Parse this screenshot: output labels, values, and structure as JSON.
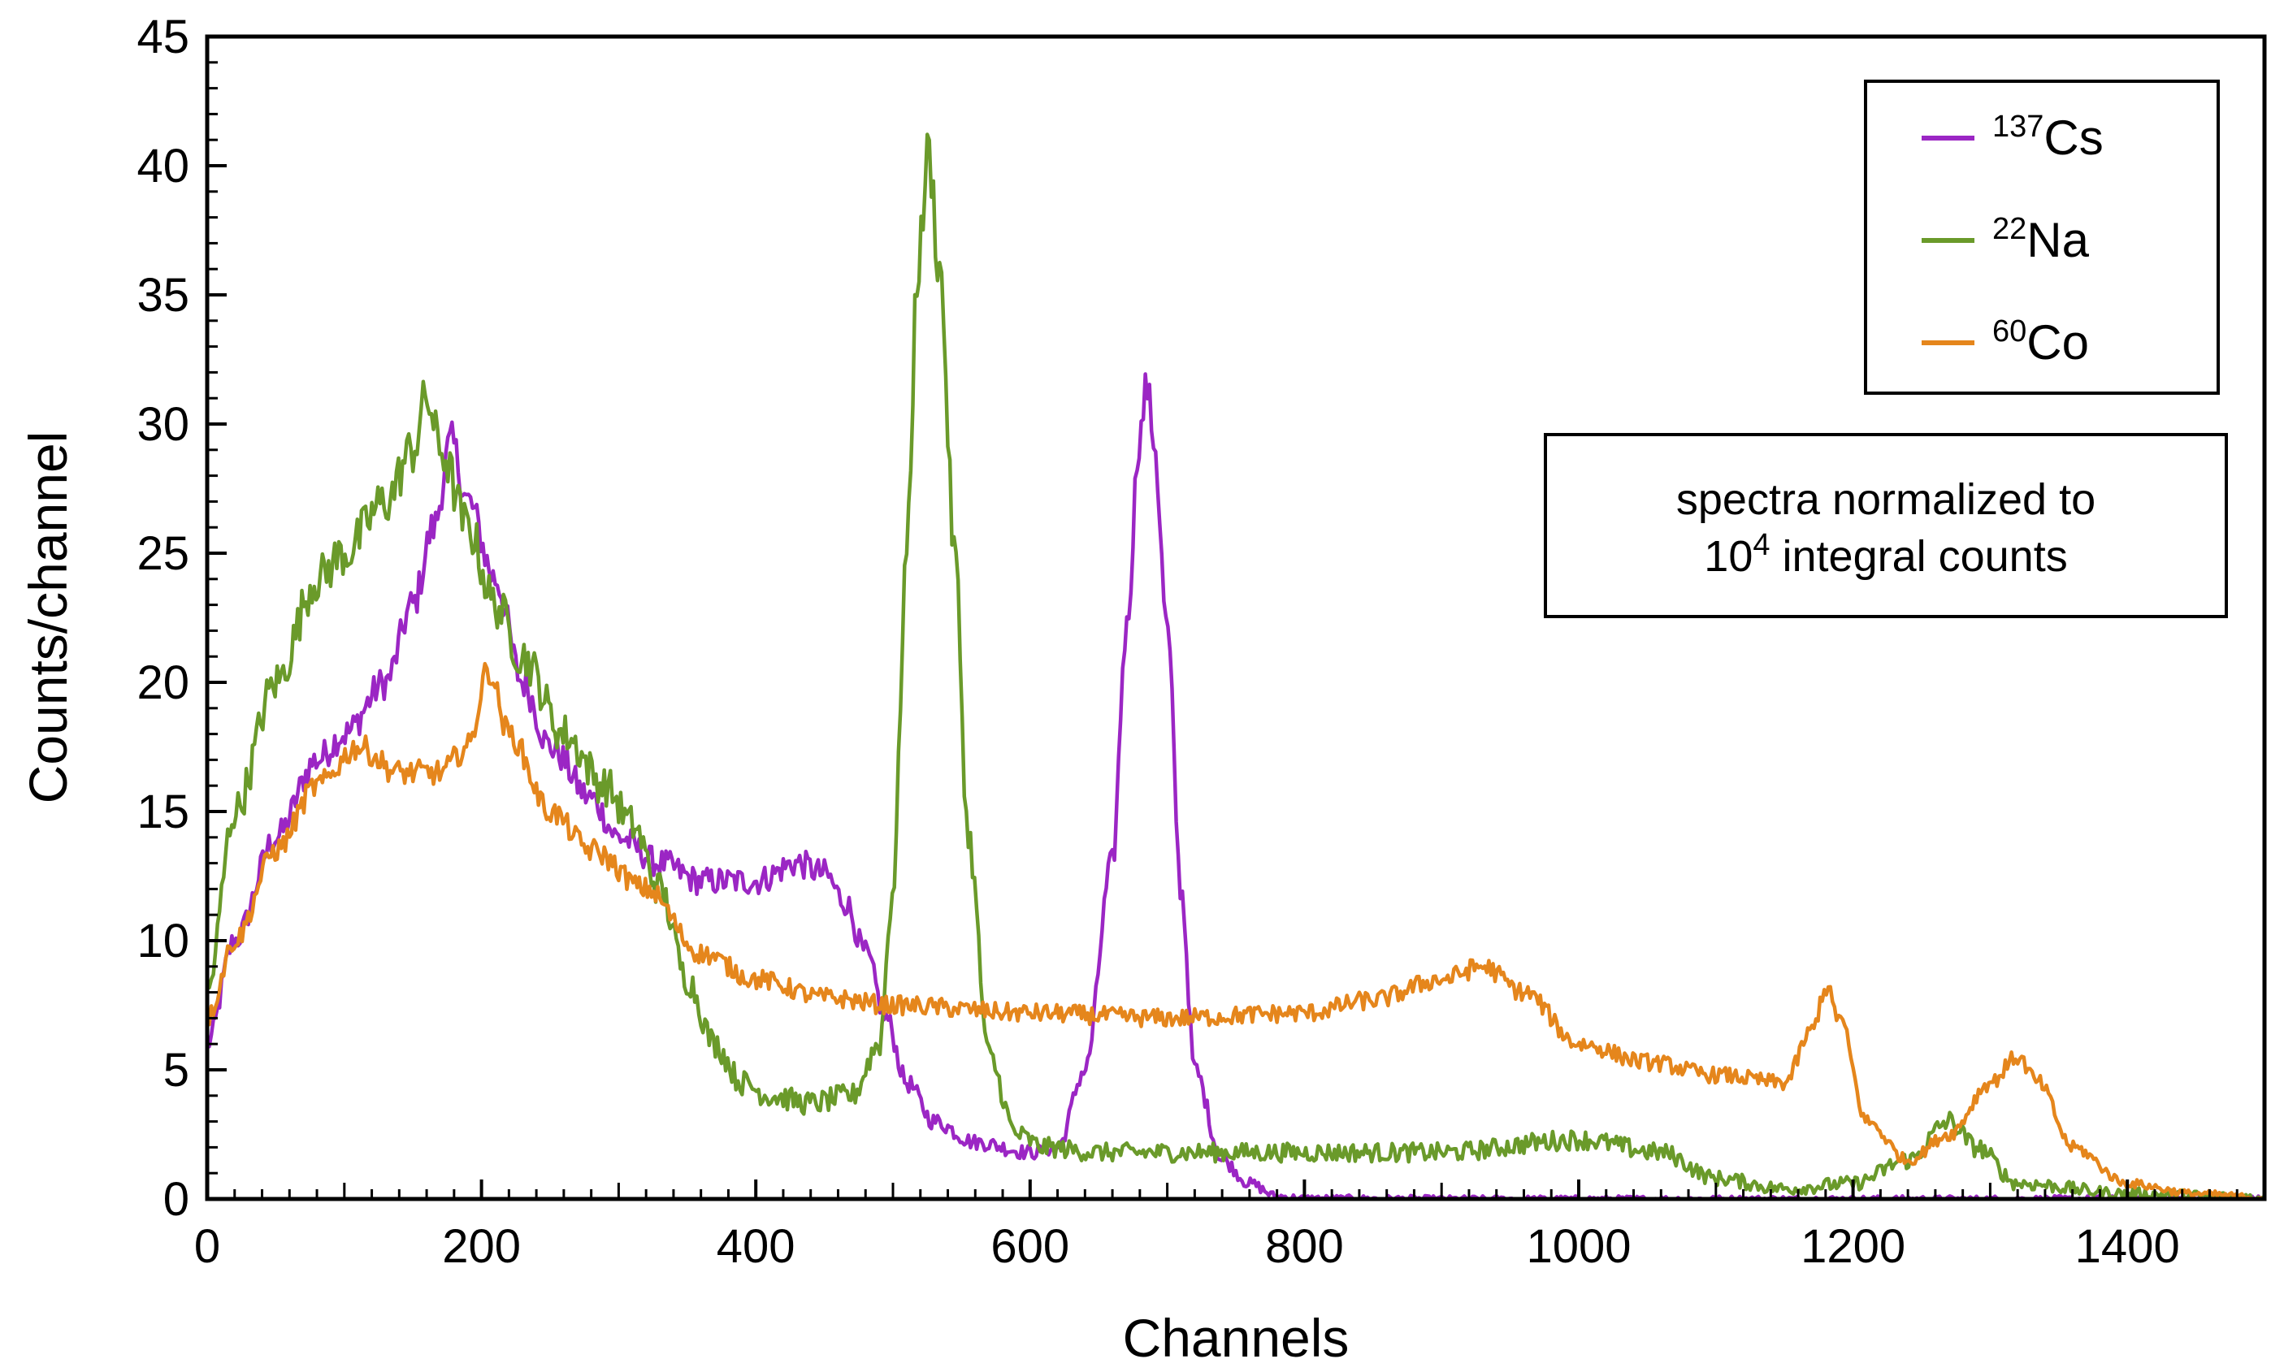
{
  "chart_data": {
    "type": "line",
    "xlabel": "Channels",
    "ylabel": "Counts/channel",
    "xlim": [
      0,
      1500
    ],
    "ylim": [
      0,
      45
    ],
    "xticks": [
      0,
      200,
      400,
      600,
      800,
      1000,
      1200,
      1400
    ],
    "yticks": [
      0,
      5,
      10,
      15,
      20,
      25,
      30,
      35,
      40,
      45
    ],
    "xtick_labels": [
      "0",
      "200",
      "400",
      "600",
      "800",
      "1000",
      "1200",
      "1400"
    ],
    "ytick_labels": [
      "0",
      "5",
      "10",
      "15",
      "20",
      "25",
      "30",
      "35",
      "40",
      "45"
    ],
    "grid": false,
    "legend_position": "top-right",
    "annotation": {
      "line1": "spectra normalized to",
      "line2_base": "10",
      "line2_sup": "4",
      "line2_rest": " integral counts"
    },
    "series": [
      {
        "name": "137Cs",
        "label_sup": "137",
        "label_base": "Cs",
        "color": "#9B26C4",
        "noise": 0.35,
        "x": [
          0,
          20,
          50,
          80,
          100,
          130,
          150,
          165,
          178,
          190,
          210,
          230,
          250,
          280,
          300,
          330,
          360,
          400,
          430,
          450,
          465,
          480,
          495,
          510,
          530,
          560,
          600,
          620,
          640,
          660,
          670,
          680,
          685,
          690,
          700,
          710,
          720,
          740,
          760,
          780,
          800,
          850,
          900,
          1000,
          1200,
          1500
        ],
        "y": [
          6,
          10,
          14,
          17,
          18,
          20,
          23,
          26,
          29.3,
          27,
          24,
          20,
          17.5,
          15.5,
          14,
          13,
          12.3,
          12.3,
          13,
          12.6,
          11.5,
          9.5,
          7,
          4.5,
          3,
          2.2,
          1.8,
          2,
          5,
          13,
          22,
          29.5,
          31.5,
          29.5,
          22,
          12,
          5,
          1.5,
          0.6,
          0.1,
          0.02,
          0.01,
          0,
          0,
          0,
          0
        ]
      },
      {
        "name": "22Na",
        "label_sup": "22",
        "label_base": "Na",
        "color": "#6A9A2A",
        "noise": 0.45,
        "x": [
          0,
          20,
          50,
          80,
          100,
          130,
          150,
          160,
          170,
          190,
          210,
          230,
          260,
          290,
          310,
          330,
          350,
          370,
          390,
          410,
          440,
          470,
          490,
          500,
          510,
          518,
          526,
          534,
          545,
          555,
          570,
          590,
          610,
          650,
          700,
          800,
          900,
          1000,
          1060,
          1100,
          1150,
          1200,
          1240,
          1270,
          1290,
          1320,
          1400,
          1500
        ],
        "y": [
          8,
          15,
          20,
          24,
          25,
          27,
          29,
          31,
          29,
          26,
          23,
          21,
          18,
          16,
          14.5,
          12,
          8.5,
          6,
          4.5,
          4,
          3.7,
          4,
          6,
          12,
          25,
          36,
          40.5,
          36,
          25,
          14,
          5.5,
          2.5,
          2,
          1.8,
          1.8,
          1.8,
          1.8,
          2.3,
          1.8,
          0.8,
          0.4,
          0.6,
          1.5,
          3,
          2,
          0.6,
          0.2,
          0.05
        ]
      },
      {
        "name": "60Co",
        "label_sup": "60",
        "label_base": "Co",
        "color": "#E5861C",
        "noise": 0.28,
        "x": [
          0,
          20,
          50,
          80,
          110,
          140,
          170,
          190,
          205,
          220,
          250,
          280,
          320,
          360,
          400,
          450,
          500,
          600,
          700,
          800,
          850,
          900,
          930,
          960,
          1000,
          1050,
          1100,
          1150,
          1170,
          1180,
          1190,
          1210,
          1240,
          1270,
          1300,
          1320,
          1335,
          1360,
          1400,
          1450,
          1500
        ],
        "y": [
          7,
          10,
          13.5,
          16,
          17.5,
          16.5,
          16.5,
          17.5,
          20.5,
          18,
          15,
          13.5,
          12,
          9.5,
          8.5,
          7.8,
          7.5,
          7.2,
          7,
          7.2,
          7.7,
          8.5,
          9,
          8,
          6,
          5.3,
          4.8,
          4.5,
          6.5,
          8.2,
          7,
          3,
          1.5,
          2.5,
          4.5,
          5.5,
          4.5,
          2,
          0.6,
          0.2,
          0.05
        ]
      }
    ]
  }
}
